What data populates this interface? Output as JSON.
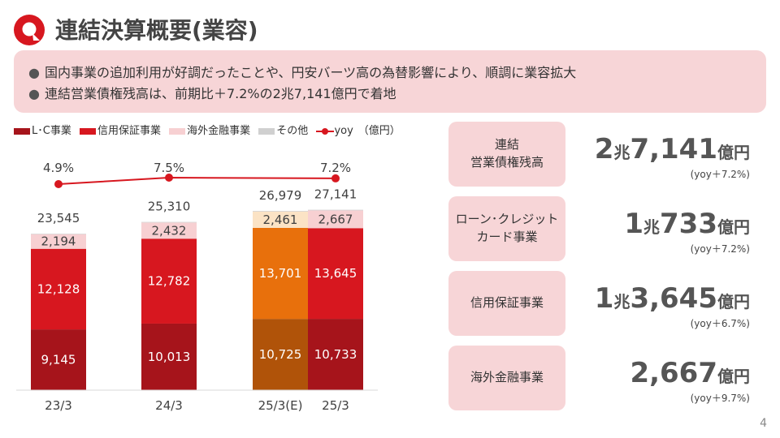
{
  "title": "連結決算概要(業容)",
  "summary": [
    "国内事業の追加利用が好調だったことや、円安バーツ高の為替影響により、順調に業容拡大",
    "連結営業債権残高は、前期比＋7.2%の2兆7,141億円で着地"
  ],
  "legend": {
    "items": [
      {
        "label": "L･C事業",
        "color": "#a6141b"
      },
      {
        "label": "信用保証事業",
        "color": "#d7171f"
      },
      {
        "label": "海外金融事業",
        "color": "#f7d0d2"
      },
      {
        "label": "その他",
        "color": "#d0d0d0"
      },
      {
        "label": "yoy",
        "color": "#d7171f"
      }
    ],
    "unit": "（億円）"
  },
  "chart_data": {
    "type": "bar",
    "stacked": true,
    "categories": [
      "23/3",
      "24/3",
      "25/3(E)",
      "25/3"
    ],
    "series": [
      {
        "name": "L･C事業",
        "values": [
          9145,
          10013,
          10725,
          10733
        ]
      },
      {
        "name": "信用保証事業",
        "values": [
          12128,
          12782,
          13701,
          13645
        ]
      },
      {
        "name": "海外金融事業",
        "values": [
          2194,
          2432,
          2461,
          2667
        ]
      },
      {
        "name": "その他",
        "values": [
          78,
          83,
          92,
          96
        ]
      }
    ],
    "value_labels": [
      [
        "9,145",
        "10,013",
        "10,725",
        "10,733"
      ],
      [
        "12,128",
        "12,782",
        "13,701",
        "13,645"
      ],
      [
        "2,194",
        "2,432",
        "2,461",
        "2,667"
      ]
    ],
    "totals": [
      "23,545",
      "25,310",
      "26,979",
      "27,141"
    ],
    "yoy": {
      "name": "yoy",
      "categories": [
        "23/3",
        "24/3",
        "25/3"
      ],
      "values": [
        4.9,
        7.5,
        7.2
      ],
      "labels": [
        "4.9%",
        "7.5%",
        "7.2%"
      ]
    },
    "estimate_colors": {
      "L･C事業": "#b05309",
      "信用保証事業": "#e8700c",
      "海外金融事業": "#fbe3c5"
    },
    "ylim": [
      0,
      30000
    ],
    "colors": {
      "L･C事業": "#a6141b",
      "信用保証事業": "#d7171f",
      "海外金融事業": "#f7d0d2",
      "その他": "#d0d0d0",
      "yoy": "#d7171f"
    }
  },
  "cards": [
    {
      "label": "連結\n営業債権残高",
      "value_parts": [
        {
          "t": "2",
          "s": "big"
        },
        {
          "t": "兆",
          "s": "small"
        },
        {
          "t": "7,141",
          "s": "big"
        },
        {
          "t": "億円",
          "s": "small"
        }
      ],
      "yoy": "(yoy＋7.2%)"
    },
    {
      "label": "ローン･クレジット\nカード事業",
      "value_parts": [
        {
          "t": "1",
          "s": "big"
        },
        {
          "t": "兆",
          "s": "small"
        },
        {
          "t": "733",
          "s": "big"
        },
        {
          "t": "億円",
          "s": "small"
        }
      ],
      "yoy": "(yoy＋7.2%)"
    },
    {
      "label": "信用保証事業",
      "value_parts": [
        {
          "t": "1",
          "s": "big"
        },
        {
          "t": "兆",
          "s": "small"
        },
        {
          "t": "3,645",
          "s": "big"
        },
        {
          "t": "億円",
          "s": "small"
        }
      ],
      "yoy": "(yoy＋6.7%)"
    },
    {
      "label": "海外金融事業",
      "value_parts": [
        {
          "t": "2,667",
          "s": "big"
        },
        {
          "t": "億円",
          "s": "small"
        }
      ],
      "yoy": "(yoy＋9.7%)"
    }
  ],
  "page_number": "4"
}
